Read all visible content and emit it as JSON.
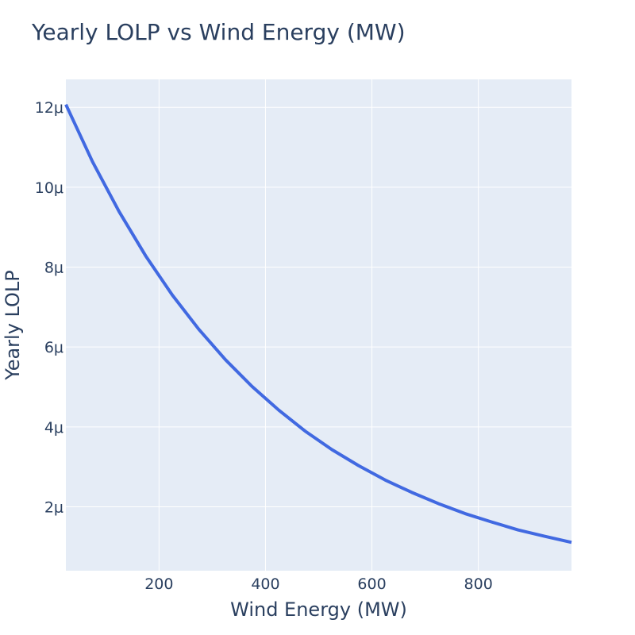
{
  "chart_data": {
    "type": "line",
    "title": "Yearly LOLP vs Wind Energy (MW)",
    "xlabel": "Wind Energy (MW)",
    "ylabel": "Yearly LOLP",
    "xlim": [
      25,
      975
    ],
    "ylim": [
      4e-07,
      1.27e-05
    ],
    "x_ticks": [
      200,
      400,
      600,
      800
    ],
    "x_tick_labels": [
      "200",
      "400",
      "600",
      "800"
    ],
    "y_ticks": [
      2e-06,
      4e-06,
      6e-06,
      8e-06,
      1e-05,
      1.2e-05
    ],
    "y_tick_labels": [
      "2μ",
      "4μ",
      "6μ",
      "8μ",
      "10μ",
      "12μ"
    ],
    "grid": true,
    "legend": "none",
    "colors": {
      "line": "#4169e1",
      "plot_background": "#e5ecf6",
      "gridline": "#ffffff",
      "text": "#2a3f5f"
    },
    "series": [
      {
        "x": [
          25,
          75,
          125,
          175,
          225,
          275,
          325,
          375,
          425,
          475,
          525,
          575,
          625,
          675,
          725,
          775,
          825,
          875,
          925,
          975
        ],
        "y": [
          1.207e-05,
          1.064e-05,
          9.39e-06,
          8.28e-06,
          7.3e-06,
          6.44e-06,
          5.68e-06,
          5.01e-06,
          4.42e-06,
          3.89e-06,
          3.43e-06,
          3.03e-06,
          2.67e-06,
          2.36e-06,
          2.08e-06,
          1.83e-06,
          1.62e-06,
          1.42e-06,
          1.26e-06,
          1.11e-06
        ]
      }
    ]
  }
}
